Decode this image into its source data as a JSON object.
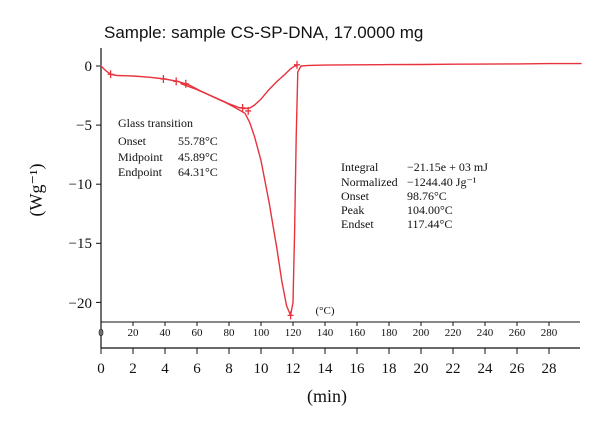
{
  "chart_data": {
    "type": "line",
    "title": "Sample: sample CS-SP-DNA, 17.0000 mg",
    "xlabel": "(min)",
    "ylabel": "(Wg⁻¹)",
    "xlim": [
      0,
      30
    ],
    "ylim": [
      -22,
      1
    ],
    "x_ticks": [
      "0",
      "2",
      "4",
      "6",
      "8",
      "10",
      "12",
      "14",
      "16",
      "18",
      "20",
      "22",
      "24",
      "26",
      "28"
    ],
    "y_ticks": [
      "0",
      "−5",
      "−10",
      "−15",
      "−20"
    ],
    "temperature_axis": {
      "unit_label": "(°C)",
      "ticks": [
        "0",
        "20",
        "40",
        "60",
        "80",
        "100",
        "120",
        "140",
        "160",
        "180",
        "200",
        "220",
        "240",
        "260",
        "280"
      ]
    },
    "grid": false,
    "series": [
      {
        "color": "#e8323c",
        "x": [
          0,
          0.3,
          0.6,
          1.0,
          2.0,
          3.0,
          4.0,
          4.8,
          5.5,
          6.2,
          7.0,
          7.8,
          8.5,
          9.0,
          9.3,
          9.6,
          10.0,
          10.5,
          11.0,
          11.3,
          11.6,
          11.85,
          12.0,
          12.1,
          12.2,
          12.3,
          12.5,
          13.0,
          14.0,
          16.0,
          18.0,
          20.0,
          22.0,
          24.0,
          26.0,
          28.0,
          30.0
        ],
        "y": [
          0.0,
          -0.4,
          -0.7,
          -0.8,
          -0.85,
          -0.95,
          -1.1,
          -1.3,
          -1.6,
          -2.1,
          -2.6,
          -3.1,
          -3.6,
          -4.0,
          -4.8,
          -6.0,
          -8.0,
          -11.5,
          -15.5,
          -18.2,
          -20.3,
          -21.1,
          -20.0,
          -14.0,
          -6.0,
          -0.5,
          0.0,
          0.05,
          0.08,
          0.1,
          0.12,
          0.13,
          0.15,
          0.16,
          0.18,
          0.2,
          0.2
        ]
      },
      {
        "color": "#e8323c",
        "x": [
          5.0,
          6.0,
          7.0,
          8.0,
          8.6,
          9.0,
          9.3,
          9.6,
          10.0,
          10.5,
          11.0,
          11.5,
          11.8,
          12.0,
          12.1,
          12.2
        ],
        "y": [
          -1.5,
          -2.0,
          -2.6,
          -3.2,
          -3.5,
          -3.6,
          -3.55,
          -3.3,
          -2.8,
          -2.0,
          -1.3,
          -0.7,
          -0.3,
          -0.1,
          0.0,
          0.0
        ]
      }
    ],
    "markers": [
      {
        "x": 0.6,
        "y": -0.7
      },
      {
        "x": 3.9,
        "y": -1.1
      },
      {
        "x": 4.7,
        "y": -1.3
      },
      {
        "x": 5.3,
        "y": -1.5
      },
      {
        "x": 8.85,
        "y": -3.55
      },
      {
        "x": 9.2,
        "y": -3.8
      },
      {
        "x": 11.85,
        "y": -21.1
      },
      {
        "x": 12.25,
        "y": 0.1
      }
    ],
    "annotations": {
      "glass_transition": {
        "heading": "Glass transition",
        "rows": [
          {
            "label": "Onset",
            "value": "55.78°C"
          },
          {
            "label": "Midpoint",
            "value": "45.89°C"
          },
          {
            "label": "Endpoint",
            "value": "64.31°C"
          }
        ]
      },
      "peak_info": {
        "rows": [
          {
            "label": "Integral",
            "value": "−21.15e + 03 mJ"
          },
          {
            "label": "Normalized",
            "value": "−1244.40 Jg⁻¹"
          },
          {
            "label": "Onset",
            "value": "98.76°C"
          },
          {
            "label": "Peak",
            "value": "104.00°C"
          },
          {
            "label": "Endset",
            "value": "117.44°C"
          }
        ]
      }
    }
  }
}
